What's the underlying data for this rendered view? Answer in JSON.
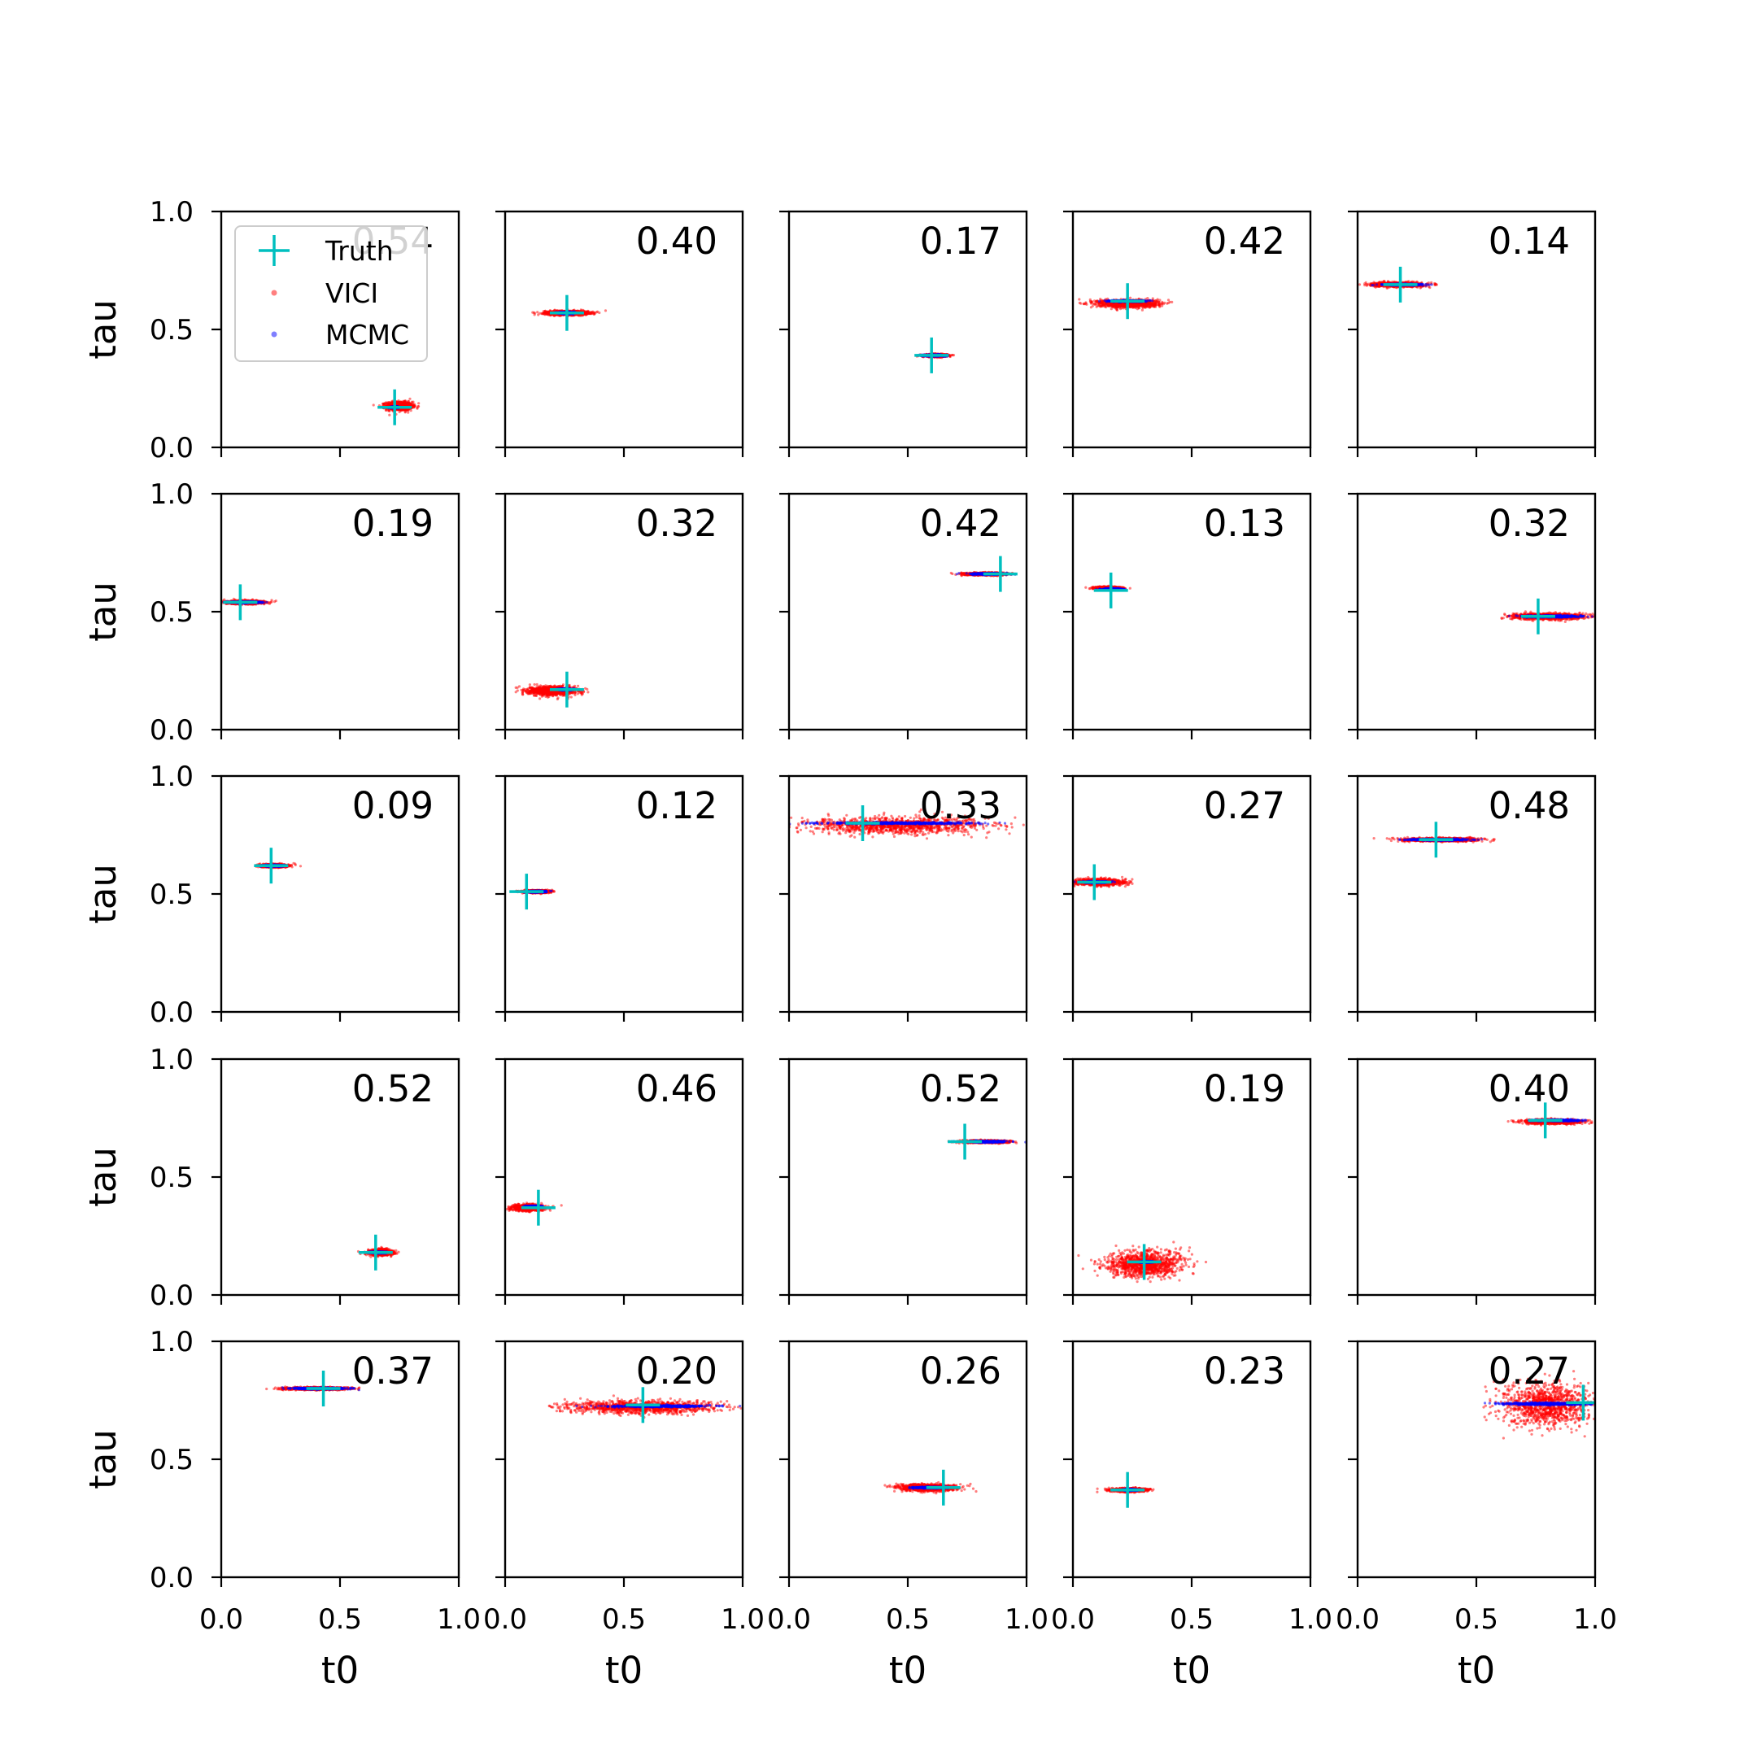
{
  "chart_data": {
    "type": "scatter",
    "layout": "5x5 grid of subplots",
    "xlabel": "t0",
    "ylabel": "tau",
    "xlim": [
      0.0,
      1.0
    ],
    "ylim": [
      0.0,
      1.0
    ],
    "x_ticks": [
      "0.0",
      "0.5",
      "1.0"
    ],
    "y_ticks": [
      "0.0",
      "0.5",
      "1.0"
    ],
    "legend": {
      "placement": "upper-left of first subplot",
      "entries": [
        {
          "label": "Truth",
          "marker": "plus",
          "color": "#00bfbf"
        },
        {
          "label": "VICI",
          "marker": "dot",
          "color": "#ff0000"
        },
        {
          "label": "MCMC",
          "marker": "dot",
          "color": "#0000ff"
        }
      ]
    },
    "colors": {
      "truth": "#00bfbf",
      "vici": "#ff0000",
      "mcmc": "#0000ff"
    },
    "panels": [
      {
        "score": "0.54",
        "truth": [
          0.73,
          0.17
        ],
        "vici": {
          "center": [
            0.75,
            0.175
          ],
          "spread": [
            0.06,
            0.02
          ]
        },
        "mcmc": {
          "center": [
            0.73,
            0.17
          ],
          "spread": [
            0.02,
            0.004
          ]
        }
      },
      {
        "score": "0.40",
        "truth": [
          0.26,
          0.57
        ],
        "vici": {
          "center": [
            0.26,
            0.57
          ],
          "spread": [
            0.1,
            0.01
          ]
        },
        "mcmc": {
          "center": [
            0.26,
            0.57
          ],
          "spread": [
            0.04,
            0.005
          ]
        }
      },
      {
        "score": "0.17",
        "truth": [
          0.6,
          0.39
        ],
        "vici": {
          "center": [
            0.62,
            0.39
          ],
          "spread": [
            0.05,
            0.006
          ]
        },
        "mcmc": {
          "center": [
            0.61,
            0.39
          ],
          "spread": [
            0.06,
            0.004
          ]
        }
      },
      {
        "score": "0.42",
        "truth": [
          0.23,
          0.62
        ],
        "vici": {
          "center": [
            0.23,
            0.61
          ],
          "spread": [
            0.14,
            0.018
          ]
        },
        "mcmc": {
          "center": [
            0.23,
            0.62
          ],
          "spread": [
            0.1,
            0.004
          ]
        }
      },
      {
        "score": "0.14",
        "truth": [
          0.18,
          0.69
        ],
        "vici": {
          "center": [
            0.17,
            0.69
          ],
          "spread": [
            0.11,
            0.01
          ]
        },
        "mcmc": {
          "center": [
            0.19,
            0.69
          ],
          "spread": [
            0.1,
            0.004
          ]
        }
      },
      {
        "score": "0.19",
        "truth": [
          0.08,
          0.54
        ],
        "vici": {
          "center": [
            0.1,
            0.54
          ],
          "spread": [
            0.09,
            0.008
          ]
        },
        "mcmc": {
          "center": [
            0.1,
            0.54
          ],
          "spread": [
            0.08,
            0.004
          ]
        }
      },
      {
        "score": "0.32",
        "truth": [
          0.26,
          0.17
        ],
        "vici": {
          "center": [
            0.2,
            0.165
          ],
          "spread": [
            0.11,
            0.02
          ]
        },
        "mcmc": {
          "center": [
            0.25,
            0.17
          ],
          "spread": [
            0.04,
            0.004
          ]
        }
      },
      {
        "score": "0.42",
        "truth": [
          0.89,
          0.66
        ],
        "vici": {
          "center": [
            0.83,
            0.66
          ],
          "spread": [
            0.09,
            0.006
          ]
        },
        "mcmc": {
          "center": [
            0.84,
            0.66
          ],
          "spread": [
            0.09,
            0.004
          ]
        }
      },
      {
        "score": "0.13",
        "truth": [
          0.16,
          0.59
        ],
        "vici": {
          "center": [
            0.15,
            0.6
          ],
          "spread": [
            0.06,
            0.006
          ]
        },
        "mcmc": {
          "center": [
            0.17,
            0.595
          ],
          "spread": [
            0.05,
            0.004
          ]
        }
      },
      {
        "score": "0.32",
        "truth": [
          0.76,
          0.48
        ],
        "vici": {
          "center": [
            0.8,
            0.48
          ],
          "spread": [
            0.16,
            0.014
          ]
        },
        "mcmc": {
          "center": [
            0.82,
            0.48
          ],
          "spread": [
            0.15,
            0.005
          ]
        }
      },
      {
        "score": "0.09",
        "truth": [
          0.21,
          0.62
        ],
        "vici": {
          "center": [
            0.22,
            0.62
          ],
          "spread": [
            0.06,
            0.007
          ]
        },
        "mcmc": {
          "center": [
            0.22,
            0.62
          ],
          "spread": [
            0.05,
            0.004
          ]
        }
      },
      {
        "score": "0.12",
        "truth": [
          0.09,
          0.51
        ],
        "vici": {
          "center": [
            0.13,
            0.51
          ],
          "spread": [
            0.06,
            0.006
          ]
        },
        "mcmc": {
          "center": [
            0.13,
            0.51
          ],
          "spread": [
            0.05,
            0.004
          ]
        }
      },
      {
        "score": "0.33",
        "truth": [
          0.31,
          0.8
        ],
        "vici": {
          "center": [
            0.45,
            0.79
          ],
          "spread": [
            0.42,
            0.04
          ]
        },
        "mcmc": {
          "center": [
            0.46,
            0.8
          ],
          "spread": [
            0.38,
            0.005
          ]
        }
      },
      {
        "score": "0.27",
        "truth": [
          0.09,
          0.55
        ],
        "vici": {
          "center": [
            0.11,
            0.55
          ],
          "spread": [
            0.11,
            0.014
          ]
        },
        "mcmc": {
          "center": [
            0.1,
            0.55
          ],
          "spread": [
            0.06,
            0.004
          ]
        }
      },
      {
        "score": "0.48",
        "truth": [
          0.33,
          0.73
        ],
        "vici": {
          "center": [
            0.35,
            0.73
          ],
          "spread": [
            0.17,
            0.008
          ]
        },
        "mcmc": {
          "center": [
            0.34,
            0.73
          ],
          "spread": [
            0.14,
            0.004
          ]
        }
      },
      {
        "score": "0.52",
        "truth": [
          0.65,
          0.18
        ],
        "vici": {
          "center": [
            0.67,
            0.18
          ],
          "spread": [
            0.05,
            0.014
          ]
        },
        "mcmc": {
          "center": [
            0.66,
            0.18
          ],
          "spread": [
            0.04,
            0.004
          ]
        }
      },
      {
        "score": "0.46",
        "truth": [
          0.14,
          0.37
        ],
        "vici": {
          "center": [
            0.1,
            0.37
          ],
          "spread": [
            0.07,
            0.014
          ]
        },
        "mcmc": {
          "center": [
            0.12,
            0.375
          ],
          "spread": [
            0.04,
            0.004
          ]
        }
      },
      {
        "score": "0.52",
        "truth": [
          0.74,
          0.65
        ],
        "vici": {
          "center": [
            0.83,
            0.65
          ],
          "spread": [
            0.1,
            0.006
          ]
        },
        "mcmc": {
          "center": [
            0.83,
            0.65
          ],
          "spread": [
            0.1,
            0.004
          ]
        }
      },
      {
        "score": "0.19",
        "truth": [
          0.3,
          0.14
        ],
        "vici": {
          "center": [
            0.3,
            0.13
          ],
          "spread": [
            0.18,
            0.06
          ]
        },
        "mcmc": {
          "center": [
            0.31,
            0.14
          ],
          "spread": [
            0.03,
            0.004
          ]
        }
      },
      {
        "score": "0.40",
        "truth": [
          0.79,
          0.74
        ],
        "vici": {
          "center": [
            0.82,
            0.735
          ],
          "spread": [
            0.13,
            0.01
          ]
        },
        "mcmc": {
          "center": [
            0.83,
            0.74
          ],
          "spread": [
            0.12,
            0.004
          ]
        }
      },
      {
        "score": "0.37",
        "truth": [
          0.43,
          0.8
        ],
        "vici": {
          "center": [
            0.4,
            0.8
          ],
          "spread": [
            0.14,
            0.006
          ]
        },
        "mcmc": {
          "center": [
            0.41,
            0.8
          ],
          "spread": [
            0.14,
            0.004
          ]
        }
      },
      {
        "score": "0.20",
        "truth": [
          0.58,
          0.73
        ],
        "vici": {
          "center": [
            0.58,
            0.72
          ],
          "spread": [
            0.35,
            0.028
          ]
        },
        "mcmc": {
          "center": [
            0.65,
            0.725
          ],
          "spread": [
            0.26,
            0.005
          ]
        }
      },
      {
        "score": "0.26",
        "truth": [
          0.65,
          0.38
        ],
        "vici": {
          "center": [
            0.58,
            0.38
          ],
          "spread": [
            0.13,
            0.016
          ]
        },
        "mcmc": {
          "center": [
            0.6,
            0.38
          ],
          "spread": [
            0.1,
            0.004
          ]
        }
      },
      {
        "score": "0.23",
        "truth": [
          0.23,
          0.37
        ],
        "vici": {
          "center": [
            0.24,
            0.37
          ],
          "spread": [
            0.08,
            0.008
          ]
        },
        "mcmc": {
          "center": [
            0.24,
            0.37
          ],
          "spread": [
            0.04,
            0.004
          ]
        }
      },
      {
        "score": "0.27",
        "truth": [
          0.95,
          0.74
        ],
        "vici": {
          "center": [
            0.79,
            0.73
          ],
          "spread": [
            0.2,
            0.1
          ]
        },
        "mcmc": {
          "center": [
            0.8,
            0.735
          ],
          "spread": [
            0.24,
            0.006
          ]
        }
      }
    ]
  }
}
